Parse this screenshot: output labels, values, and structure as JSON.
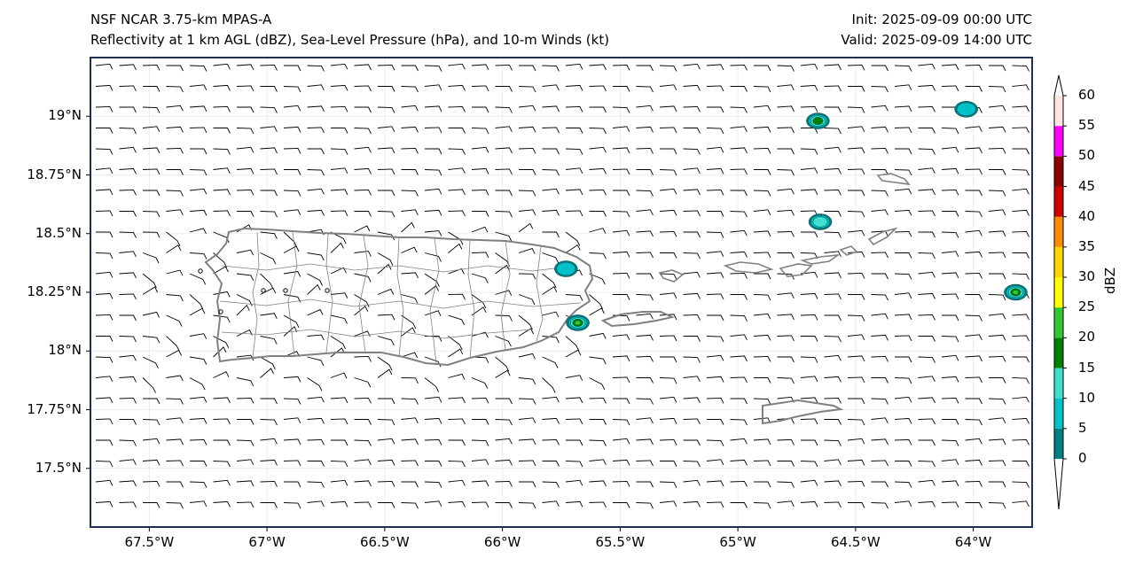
{
  "header": {
    "model": "NSF NCAR 3.75-km MPAS-A",
    "fields": "Reflectivity at 1 km AGL (dBZ), Sea-Level Pressure (hPa), and 10-m Winds (kt)",
    "init": "Init: 2025-09-09 00:00 UTC",
    "valid": "Valid: 2025-09-09 14:00 UTC"
  },
  "map": {
    "lat_labels": [
      "19°N",
      "18.75°N",
      "18.5°N",
      "18.25°N",
      "18°N",
      "17.75°N",
      "17.5°N"
    ],
    "lon_labels": [
      "67.5°W",
      "67°W",
      "66.5°W",
      "66°W",
      "65.5°W",
      "65°W",
      "64.5°W",
      "64°W"
    ]
  },
  "colorbar": {
    "label": "dBZ",
    "ticks": [
      "0",
      "5",
      "10",
      "15",
      "20",
      "25",
      "30",
      "35",
      "40",
      "45",
      "50",
      "55",
      "60"
    ],
    "colors": [
      "#008080",
      "#00c0c8",
      "#40e0d0",
      "#008000",
      "#32c832",
      "#ffff00",
      "#ffd700",
      "#ff8c00",
      "#cc0000",
      "#8b0000",
      "#ff00ff",
      "#ffe4e1"
    ]
  },
  "chart_data": {
    "type": "map",
    "title": "Reflectivity at 1 km AGL (dBZ), Sea-Level Pressure (hPa), and 10-m Winds (kt)",
    "lat_range": [
      17.25,
      19.25
    ],
    "lon_range": [
      -67.75,
      -63.75
    ],
    "reflectivity_cells": [
      {
        "lat": 18.98,
        "lon": -64.66,
        "max_dbz": 20
      },
      {
        "lat": 18.55,
        "lon": -64.65,
        "max_dbz": 15
      },
      {
        "lat": 18.25,
        "lon": -63.82,
        "max_dbz": 30
      },
      {
        "lat": 18.12,
        "lon": -65.68,
        "max_dbz": 30
      },
      {
        "lat": 18.35,
        "lon": -65.73,
        "max_dbz": 10
      },
      {
        "lat": 19.03,
        "lon": -64.03,
        "max_dbz": 10
      }
    ],
    "wind_barbs": "westward easterly trade winds, roughly 10-15 kt"
  }
}
